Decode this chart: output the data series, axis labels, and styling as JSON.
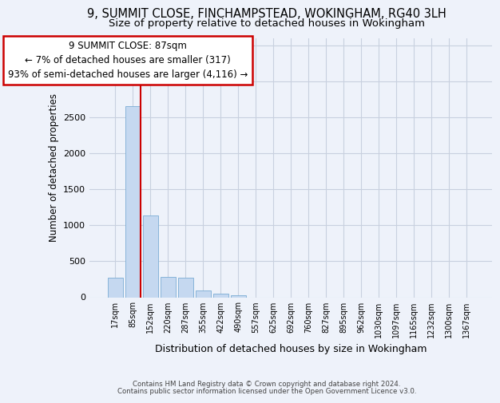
{
  "title_line1": "9, SUMMIT CLOSE, FINCHAMPSTEAD, WOKINGHAM, RG40 3LH",
  "title_line2": "Size of property relative to detached houses in Wokingham",
  "xlabel": "Distribution of detached houses by size in Wokingham",
  "ylabel": "Number of detached properties",
  "bar_color": "#c5d8f0",
  "bar_edge_color": "#7badd4",
  "annotation_text": "9 SUMMIT CLOSE: 87sqm\n← 7% of detached houses are smaller (317)\n93% of semi-detached houses are larger (4,116) →",
  "annotation_box_color": "#ffffff",
  "annotation_box_edge": "#cc0000",
  "vline_color": "#cc0000",
  "footer_line1": "Contains HM Land Registry data © Crown copyright and database right 2024.",
  "footer_line2": "Contains public sector information licensed under the Open Government Licence v3.0.",
  "categories": [
    "17sqm",
    "85sqm",
    "152sqm",
    "220sqm",
    "287sqm",
    "355sqm",
    "422sqm",
    "490sqm",
    "557sqm",
    "625sqm",
    "692sqm",
    "760sqm",
    "827sqm",
    "895sqm",
    "962sqm",
    "1030sqm",
    "1097sqm",
    "1165sqm",
    "1232sqm",
    "1300sqm",
    "1367sqm"
  ],
  "values": [
    270,
    2650,
    1140,
    280,
    275,
    90,
    50,
    32,
    0,
    0,
    0,
    0,
    0,
    0,
    0,
    0,
    0,
    0,
    0,
    0,
    0
  ],
  "ylim": [
    0,
    3600
  ],
  "yticks": [
    0,
    500,
    1000,
    1500,
    2000,
    2500,
    3000,
    3500
  ],
  "background_color": "#eef2fa",
  "grid_color": "#c8d0df",
  "title_fontsize": 10.5,
  "subtitle_fontsize": 9.5
}
